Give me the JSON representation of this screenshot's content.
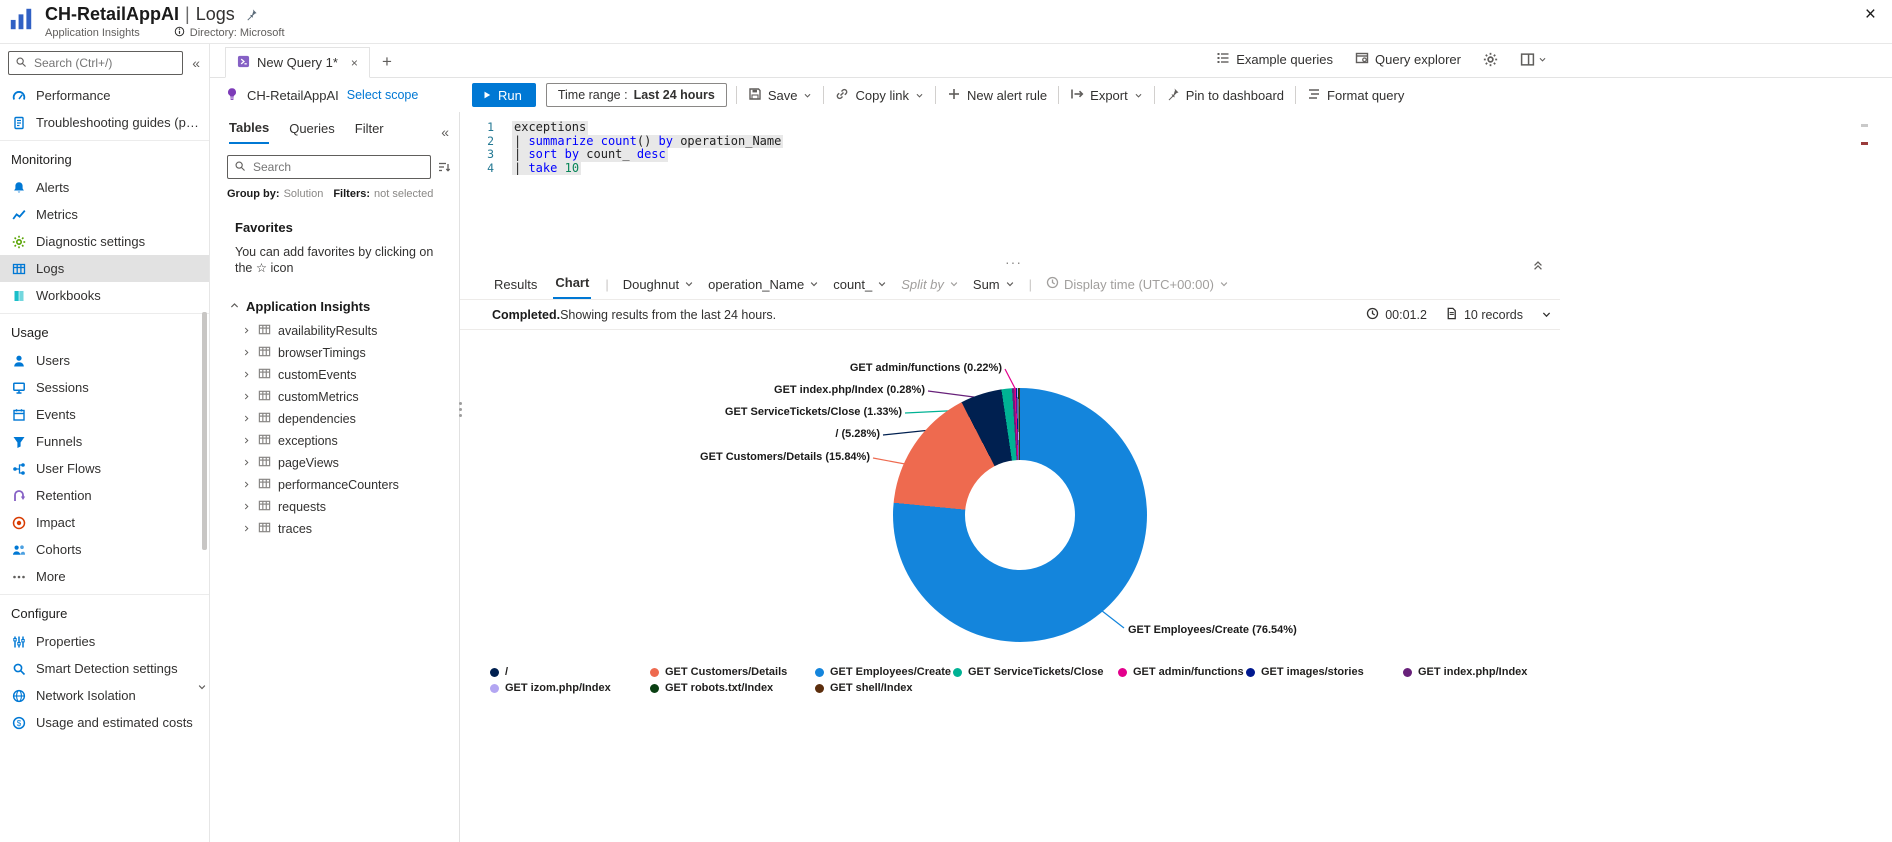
{
  "header": {
    "title_primary": "CH-RetailAppAI",
    "title_separator": "|",
    "title_secondary": "Logs",
    "subtitle": "Application Insights",
    "directory": "Directory: Microsoft",
    "close_glyph": "×"
  },
  "sidebar": {
    "search_placeholder": "Search (Ctrl+/)",
    "collapse_glyph": "«",
    "sections": [
      {
        "title": "",
        "items": [
          {
            "label": "Performance",
            "icon": "gauge-icon",
            "color": "#0078d4"
          },
          {
            "label": "Troubleshooting guides (previ...",
            "icon": "document-icon",
            "color": "#0078d4"
          }
        ]
      },
      {
        "title": "Monitoring",
        "items": [
          {
            "label": "Alerts",
            "icon": "bell-icon",
            "color": "#0078d4"
          },
          {
            "label": "Metrics",
            "icon": "line-chart-icon",
            "color": "#0078d4"
          },
          {
            "label": "Diagnostic settings",
            "icon": "gear-icon",
            "color": "#57a300"
          },
          {
            "label": "Logs",
            "icon": "logs-table-icon",
            "color": "#0078d4",
            "selected": true
          },
          {
            "label": "Workbooks",
            "icon": "workbook-icon",
            "color": "#00b7c3"
          }
        ]
      },
      {
        "title": "Usage",
        "items": [
          {
            "label": "Users",
            "icon": "person-icon",
            "color": "#0078d4"
          },
          {
            "label": "Sessions",
            "icon": "monitor-icon",
            "color": "#0078d4"
          },
          {
            "label": "Events",
            "icon": "calendar-icon",
            "color": "#0078d4"
          },
          {
            "label": "Funnels",
            "icon": "funnel-icon",
            "color": "#0078d4"
          },
          {
            "label": "User Flows",
            "icon": "flow-icon",
            "color": "#0078d4"
          },
          {
            "label": "Retention",
            "icon": "uturn-arrow-icon",
            "color": "#8661c5"
          },
          {
            "label": "Impact",
            "icon": "target-icon",
            "color": "#d83b01"
          },
          {
            "label": "Cohorts",
            "icon": "people-icon",
            "color": "#0078d4"
          },
          {
            "label": "More",
            "icon": "ellipsis-icon",
            "color": "#605e5c"
          }
        ]
      },
      {
        "title": "Configure",
        "items": [
          {
            "label": "Properties",
            "icon": "sliders-icon",
            "color": "#0078d4"
          },
          {
            "label": "Smart Detection settings",
            "icon": "magnifier-icon",
            "color": "#0078d4"
          },
          {
            "label": "Network Isolation",
            "icon": "globe-icon",
            "color": "#0078d4"
          },
          {
            "label": "Usage and estimated costs",
            "icon": "coin-icon",
            "color": "#0078d4"
          }
        ]
      }
    ]
  },
  "tabstrip": {
    "tab_title": "New Query 1*",
    "close_glyph": "×",
    "new_tab_glyph": "+",
    "links": [
      {
        "label": "Example queries",
        "icon": "list-icon"
      },
      {
        "label": "Query explorer",
        "icon": "explorer-icon"
      }
    ]
  },
  "querybar": {
    "scope_name": "CH-RetailAppAI",
    "select_scope": "Select scope",
    "run_label": "Run",
    "time_range_label": "Time range :",
    "time_range_value": "Last 24 hours",
    "buttons": [
      {
        "label": "Save",
        "icon": "save-icon",
        "chevron": true
      },
      {
        "label": "Copy link",
        "icon": "link-icon",
        "chevron": true
      },
      {
        "label": "New alert rule",
        "icon": "plus-icon",
        "chevron": false
      },
      {
        "label": "Export",
        "icon": "export-icon",
        "chevron": true
      },
      {
        "label": "Pin to dashboard",
        "icon": "pin-icon",
        "chevron": false
      },
      {
        "label": "Format query",
        "icon": "format-lines-icon",
        "chevron": false
      }
    ]
  },
  "tables_panel": {
    "tabs": [
      "Tables",
      "Queries",
      "Filter"
    ],
    "collapse_glyph": "«",
    "search_placeholder": "Search",
    "group_by_label": "Group by:",
    "group_by_value": "Solution",
    "filters_label": "Filters:",
    "filters_value": "not selected",
    "favorites_title": "Favorites",
    "favorites_hint": "You can add favorites by clicking on the ☆ icon",
    "group_title": "Application Insights",
    "tables": [
      "availabilityResults",
      "browserTimings",
      "customEvents",
      "customMetrics",
      "dependencies",
      "exceptions",
      "pageViews",
      "performanceCounters",
      "requests",
      "traces"
    ]
  },
  "editor": {
    "lines": [
      {
        "no": "1",
        "tokens": [
          {
            "c": "plain",
            "t": "exceptions"
          }
        ]
      },
      {
        "no": "2",
        "tokens": [
          {
            "c": "plain",
            "t": "| "
          },
          {
            "c": "kw",
            "t": "summarize"
          },
          {
            "c": "plain",
            "t": " "
          },
          {
            "c": "fn",
            "t": "count"
          },
          {
            "c": "plain",
            "t": "() "
          },
          {
            "c": "kw",
            "t": "by"
          },
          {
            "c": "plain",
            "t": " operation_Name"
          }
        ]
      },
      {
        "no": "3",
        "tokens": [
          {
            "c": "plain",
            "t": "| "
          },
          {
            "c": "kw",
            "t": "sort"
          },
          {
            "c": "plain",
            "t": " "
          },
          {
            "c": "kw",
            "t": "by"
          },
          {
            "c": "plain",
            "t": " count_ "
          },
          {
            "c": "kw",
            "t": "desc"
          }
        ]
      },
      {
        "no": "4",
        "tokens": [
          {
            "c": "plain",
            "t": "| "
          },
          {
            "c": "kw",
            "t": "take"
          },
          {
            "c": "plain",
            "t": " "
          },
          {
            "c": "num",
            "t": "10"
          }
        ]
      }
    ]
  },
  "results": {
    "tab_results": "Results",
    "tab_chart": "Chart",
    "chart_type": "Doughnut",
    "x_column": "operation_Name",
    "y_column": "count_",
    "split_by": "Split by",
    "aggregation": "Sum",
    "display_time": "Display time (UTC+00:00)",
    "status_bold": "Completed.",
    "status_text": " Showing results from the last 24 hours.",
    "elapsed": "00:01.2",
    "record_count": "10 records"
  },
  "chart_data": {
    "type": "pie",
    "subtype": "doughnut",
    "category_field": "operation_Name",
    "value_field": "count_",
    "slices": [
      {
        "label": "GET Employees/Create",
        "pct": 76.54,
        "color": "#1485dc"
      },
      {
        "label": "GET Customers/Details",
        "pct": 15.84,
        "color": "#ee6a4f"
      },
      {
        "label": "/",
        "pct": 5.28,
        "color": "#002050"
      },
      {
        "label": "GET ServiceTickets/Close",
        "pct": 1.33,
        "color": "#00b294"
      },
      {
        "label": "GET index.php/Index",
        "pct": 0.28,
        "color": "#68217a"
      },
      {
        "label": "GET admin/functions",
        "pct": 0.22,
        "color": "#e3008c"
      },
      {
        "label": "GET images/stories",
        "pct": 0.14,
        "color": "#00188f"
      },
      {
        "label": "GET izom.php/Index",
        "pct": 0.13,
        "color": "#b3a6f2"
      },
      {
        "label": "GET robots.txt/Index",
        "pct": 0.13,
        "color": "#0a4013"
      },
      {
        "label": "GET shell/Index",
        "pct": 0.13,
        "color": "#5c2e0d"
      }
    ],
    "callout_labels": [
      "GET admin/functions (0.22%)",
      "GET index.php/Index (0.28%)",
      "GET ServiceTickets/Close (1.33%)",
      "/ (5.28%)",
      "GET Customers/Details (15.84%)",
      "GET Employees/Create (76.54%)"
    ],
    "legend_rows": [
      [
        "/",
        "GET Customers/Details",
        "GET Employees/Create",
        "GET ServiceTickets/Close",
        "GET admin/functions",
        "GET images/stories",
        "GET index.php/Index"
      ],
      [
        "GET izom.php/Index",
        "GET robots.txt/Index",
        "GET shell/Index"
      ]
    ]
  }
}
